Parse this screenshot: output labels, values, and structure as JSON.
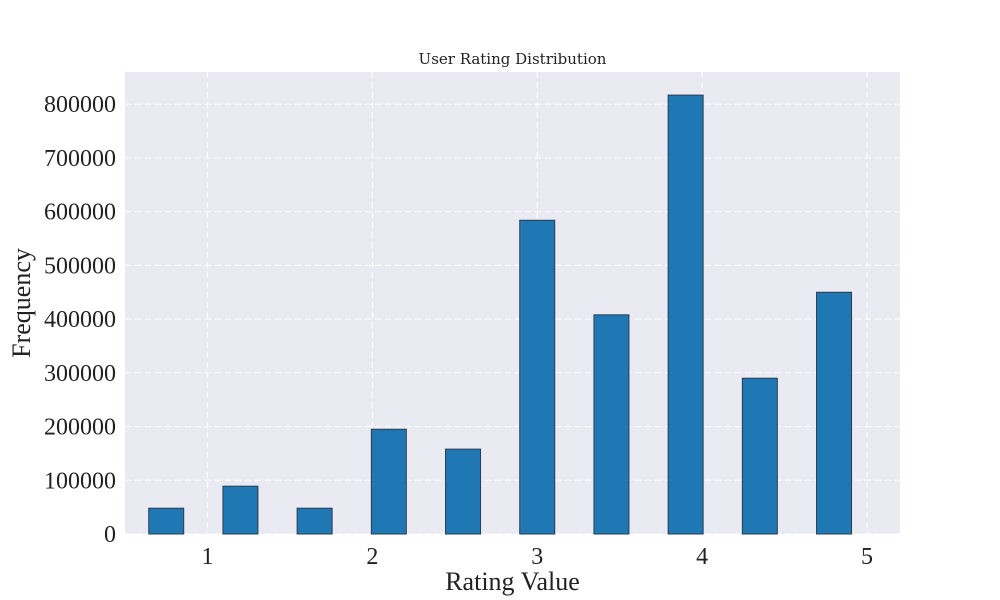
{
  "chart_data": {
    "type": "bar",
    "title": "User Rating Distribution",
    "xlabel": "Rating Value",
    "ylabel": "Frequency",
    "x": [
      0.75,
      1.2,
      1.65,
      2.1,
      2.55,
      3.0,
      3.45,
      3.9,
      4.35,
      4.8
    ],
    "values": [
      48000,
      89000,
      48000,
      195000,
      158000,
      584000,
      408000,
      817000,
      290000,
      450000
    ],
    "xlim": [
      0.5,
      5.2
    ],
    "ylim": [
      0,
      860000
    ],
    "xticks": [
      1,
      2,
      3,
      4,
      5
    ],
    "xtick_labels": [
      "1",
      "2",
      "3",
      "4",
      "5"
    ],
    "yticks": [
      0,
      100000,
      200000,
      300000,
      400000,
      500000,
      600000,
      700000,
      800000
    ],
    "ytick_labels": [
      "0",
      "100000",
      "200000",
      "300000",
      "400000",
      "500000",
      "600000",
      "700000",
      "800000"
    ],
    "grid": true,
    "colors": {
      "bar": "#1f77b4",
      "bar_edge": "#2b3d4f",
      "plot_bg": "#eaeaf2"
    }
  }
}
